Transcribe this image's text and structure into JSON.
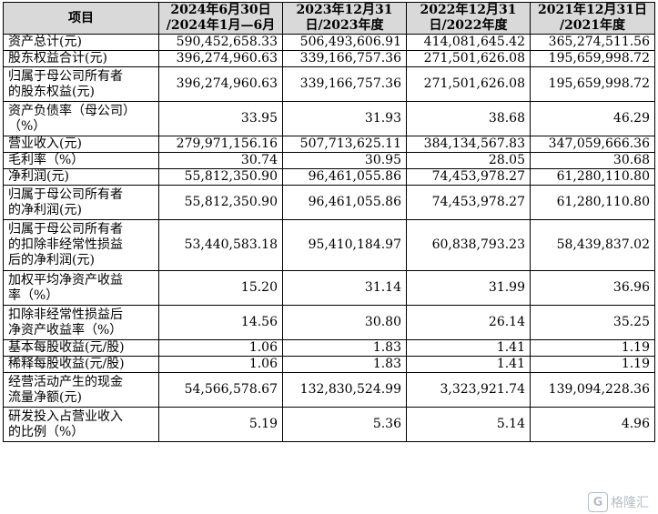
{
  "table": {
    "headers": [
      "项目",
      "2024年6月30日\n/2024年1月—6月",
      "2023年12月31\n日/2023年度",
      "2022年12月31\n日/2022年度",
      "2021年12月31日\n/2021年度"
    ],
    "rows": [
      {
        "label": "资产总计(元)",
        "values": [
          "590,452,658.33",
          "506,493,606.91",
          "414,081,645.42",
          "365,274,511.56"
        ]
      },
      {
        "label": "股东权益合计(元)",
        "values": [
          "396,274,960.63",
          "339,166,757.36",
          "271,501,626.08",
          "195,659,998.72"
        ]
      },
      {
        "label": "归属于母公司所有者\n的股东权益(元)",
        "values": [
          "396,274,960.63",
          "339,166,757.36",
          "271,501,626.08",
          "195,659,998.72"
        ]
      },
      {
        "label": "资产负债率（母公司）\n（%）",
        "values": [
          "33.95",
          "31.93",
          "38.68",
          "46.29"
        ]
      },
      {
        "label": "营业收入(元)",
        "values": [
          "279,971,156.16",
          "507,713,625.11",
          "384,134,567.83",
          "347,059,666.36"
        ]
      },
      {
        "label": "毛利率（%）",
        "values": [
          "30.74",
          "30.95",
          "28.05",
          "30.68"
        ]
      },
      {
        "label": "净利润(元)",
        "values": [
          "55,812,350.90",
          "96,461,055.86",
          "74,453,978.27",
          "61,280,110.80"
        ]
      },
      {
        "label": "归属于母公司所有者\n的净利润(元)",
        "values": [
          "55,812,350.90",
          "96,461,055.86",
          "74,453,978.27",
          "61,280,110.80"
        ]
      },
      {
        "label": "归属于母公司所有者\n的扣除非经常性损益\n后的净利润(元)",
        "values": [
          "53,440,583.18",
          "95,410,184.97",
          "60,838,793.23",
          "58,439,837.02"
        ]
      },
      {
        "label": "加权平均净资产收益\n率（%）",
        "values": [
          "15.20",
          "31.14",
          "31.99",
          "36.96"
        ]
      },
      {
        "label": "扣除非经常性损益后\n净资产收益率（%）",
        "values": [
          "14.56",
          "30.80",
          "26.14",
          "35.25"
        ]
      },
      {
        "label": "基本每股收益(元/股)",
        "values": [
          "1.06",
          "1.83",
          "1.41",
          "1.19"
        ]
      },
      {
        "label": "稀释每股收益(元/股)",
        "values": [
          "1.06",
          "1.83",
          "1.41",
          "1.19"
        ]
      },
      {
        "label": "经营活动产生的现金\n流量净额(元)",
        "values": [
          "54,566,578.67",
          "132,830,524.99",
          "3,323,921.74",
          "139,094,228.36"
        ]
      },
      {
        "label": "研发投入占营业收入\n的比例（%）",
        "values": [
          "5.19",
          "5.36",
          "5.14",
          "4.96"
        ]
      }
    ]
  },
  "watermark": {
    "text": "格隆汇",
    "logo": "G"
  }
}
